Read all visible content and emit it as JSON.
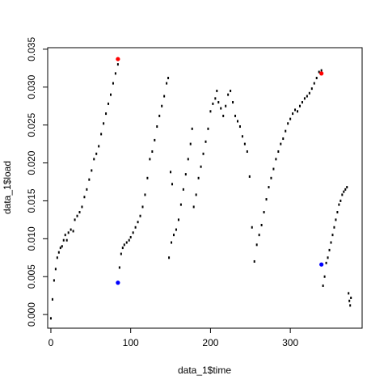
{
  "chart_data": {
    "type": "scatter",
    "title": "",
    "xlabel": "data_1$time",
    "ylabel": "data_1$load",
    "xlim": [
      -4,
      390
    ],
    "ylim": [
      -0.0018,
      0.0352
    ],
    "grid": false,
    "legend": "none",
    "x_ticks": [
      0,
      100,
      200,
      300
    ],
    "y_ticks": [
      0.0,
      0.005,
      0.01,
      0.015,
      0.02,
      0.025,
      0.03,
      0.035
    ],
    "x_tick_labels": [
      "0",
      "100",
      "200",
      "300"
    ],
    "y_tick_labels": [
      "0.000",
      "0.005",
      "0.010",
      "0.015",
      "0.020",
      "0.025",
      "0.030",
      "0.035"
    ],
    "series": [
      {
        "color": "#000000",
        "marker": "dot",
        "points": [
          [
            0,
            -0.0005
          ],
          [
            2,
            0.002
          ],
          [
            4,
            0.0045
          ],
          [
            6,
            0.006
          ],
          [
            8,
            0.0075
          ],
          [
            10,
            0.0082
          ],
          [
            12,
            0.0088
          ],
          [
            14,
            0.009
          ],
          [
            16,
            0.0098
          ],
          [
            18,
            0.0105
          ],
          [
            20,
            0.0098
          ],
          [
            22,
            0.0108
          ],
          [
            25,
            0.0112
          ],
          [
            28,
            0.011
          ],
          [
            30,
            0.0125
          ],
          [
            33,
            0.013
          ],
          [
            36,
            0.0135
          ],
          [
            39,
            0.0142
          ],
          [
            42,
            0.0155
          ],
          [
            45,
            0.0165
          ],
          [
            48,
            0.0178
          ],
          [
            51,
            0.019
          ],
          [
            54,
            0.0205
          ],
          [
            57,
            0.0212
          ],
          [
            60,
            0.0222
          ],
          [
            63,
            0.0238
          ],
          [
            66,
            0.0252
          ],
          [
            69,
            0.0265
          ],
          [
            72,
            0.0278
          ],
          [
            75,
            0.029
          ],
          [
            78,
            0.0305
          ],
          [
            81,
            0.0318
          ],
          [
            84,
            0.033
          ],
          [
            86,
            0.0062
          ],
          [
            88,
            0.008
          ],
          [
            90,
            0.0088
          ],
          [
            92,
            0.0092
          ],
          [
            95,
            0.0095
          ],
          [
            98,
            0.0098
          ],
          [
            100,
            0.0102
          ],
          [
            103,
            0.0108
          ],
          [
            106,
            0.0115
          ],
          [
            109,
            0.0122
          ],
          [
            112,
            0.013
          ],
          [
            115,
            0.0142
          ],
          [
            118,
            0.0158
          ],
          [
            121,
            0.018
          ],
          [
            124,
            0.0205
          ],
          [
            127,
            0.0215
          ],
          [
            130,
            0.023
          ],
          [
            133,
            0.0248
          ],
          [
            136,
            0.0262
          ],
          [
            139,
            0.0275
          ],
          [
            142,
            0.0288
          ],
          [
            145,
            0.0305
          ],
          [
            147,
            0.0312
          ],
          [
            150,
            0.0188
          ],
          [
            152,
            0.0172
          ],
          [
            148,
            0.0075
          ],
          [
            151,
            0.0095
          ],
          [
            154,
            0.0105
          ],
          [
            157,
            0.0112
          ],
          [
            160,
            0.0125
          ],
          [
            163,
            0.0145
          ],
          [
            166,
            0.0165
          ],
          [
            169,
            0.0185
          ],
          [
            172,
            0.0205
          ],
          [
            175,
            0.0225
          ],
          [
            177,
            0.0245
          ],
          [
            179,
            0.0142
          ],
          [
            182,
            0.0158
          ],
          [
            185,
            0.018
          ],
          [
            188,
            0.0195
          ],
          [
            191,
            0.0212
          ],
          [
            194,
            0.0228
          ],
          [
            197,
            0.0245
          ],
          [
            200,
            0.0268
          ],
          [
            203,
            0.0278
          ],
          [
            206,
            0.0285
          ],
          [
            208,
            0.0295
          ],
          [
            210,
            0.028
          ],
          [
            213,
            0.0272
          ],
          [
            216,
            0.0262
          ],
          [
            219,
            0.0275
          ],
          [
            222,
            0.029
          ],
          [
            225,
            0.0295
          ],
          [
            228,
            0.028
          ],
          [
            231,
            0.0262
          ],
          [
            234,
            0.0255
          ],
          [
            237,
            0.0248
          ],
          [
            240,
            0.0235
          ],
          [
            243,
            0.0225
          ],
          [
            246,
            0.0215
          ],
          [
            249,
            0.0182
          ],
          [
            252,
            0.0115
          ],
          [
            255,
            0.007
          ],
          [
            258,
            0.0092
          ],
          [
            261,
            0.0105
          ],
          [
            264,
            0.0118
          ],
          [
            267,
            0.0135
          ],
          [
            270,
            0.0152
          ],
          [
            273,
            0.0168
          ],
          [
            276,
            0.018
          ],
          [
            279,
            0.0192
          ],
          [
            282,
            0.0205
          ],
          [
            285,
            0.0215
          ],
          [
            288,
            0.0225
          ],
          [
            291,
            0.0232
          ],
          [
            294,
            0.0242
          ],
          [
            297,
            0.0252
          ],
          [
            300,
            0.0258
          ],
          [
            303,
            0.0265
          ],
          [
            306,
            0.027
          ],
          [
            309,
            0.0268
          ],
          [
            312,
            0.0275
          ],
          [
            315,
            0.028
          ],
          [
            318,
            0.0285
          ],
          [
            321,
            0.0288
          ],
          [
            324,
            0.0292
          ],
          [
            327,
            0.0298
          ],
          [
            330,
            0.0305
          ],
          [
            333,
            0.0312
          ],
          [
            336,
            0.032
          ],
          [
            339,
            0.0322
          ],
          [
            341,
            0.0038
          ],
          [
            343,
            0.005
          ],
          [
            345,
            0.0068
          ],
          [
            347,
            0.0075
          ],
          [
            349,
            0.0085
          ],
          [
            351,
            0.0095
          ],
          [
            353,
            0.0105
          ],
          [
            355,
            0.0115
          ],
          [
            357,
            0.0125
          ],
          [
            359,
            0.0135
          ],
          [
            361,
            0.0145
          ],
          [
            363,
            0.015
          ],
          [
            365,
            0.0158
          ],
          [
            367,
            0.0162
          ],
          [
            369,
            0.0165
          ],
          [
            371,
            0.0168
          ],
          [
            373,
            0.0028
          ],
          [
            374,
            0.0018
          ],
          [
            375,
            0.0012
          ],
          [
            376,
            0.0022
          ]
        ]
      },
      {
        "color": "#ff0000",
        "marker": "filled-circle",
        "points": [
          [
            84,
            0.0337
          ],
          [
            339,
            0.0318
          ]
        ]
      },
      {
        "color": "#0000ff",
        "marker": "filled-circle",
        "points": [
          [
            84,
            0.0042
          ],
          [
            339,
            0.0066
          ]
        ]
      }
    ]
  }
}
